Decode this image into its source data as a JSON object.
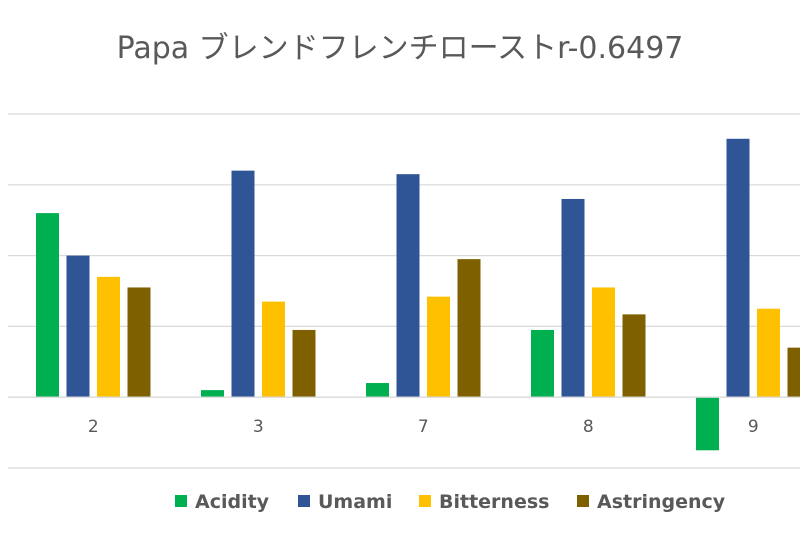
{
  "chart_data": {
    "type": "bar",
    "title": "Papa ブレンドフレンチローストr-0.6497",
    "xlabel": "",
    "ylabel": "",
    "categories": [
      "2",
      "3",
      "7",
      "8",
      "9"
    ],
    "series": [
      {
        "name": "Acidity",
        "color": "#00b050",
        "values": [
          2.6,
          0.1,
          0.2,
          0.95,
          -0.75
        ]
      },
      {
        "name": "Umami",
        "color": "#2f5597",
        "values": [
          2.0,
          3.2,
          3.15,
          2.8,
          3.65
        ]
      },
      {
        "name": "Bitterness",
        "color": "#ffc000",
        "values": [
          1.7,
          1.35,
          1.42,
          1.55,
          1.25
        ]
      },
      {
        "name": "Astringency",
        "color": "#7f6000",
        "values": [
          1.55,
          0.95,
          1.95,
          1.17,
          0.7
        ]
      }
    ],
    "ylim": [
      -1,
      4
    ],
    "grid": true,
    "y_tick_labels_visible": false,
    "legend_position": "bottom"
  }
}
